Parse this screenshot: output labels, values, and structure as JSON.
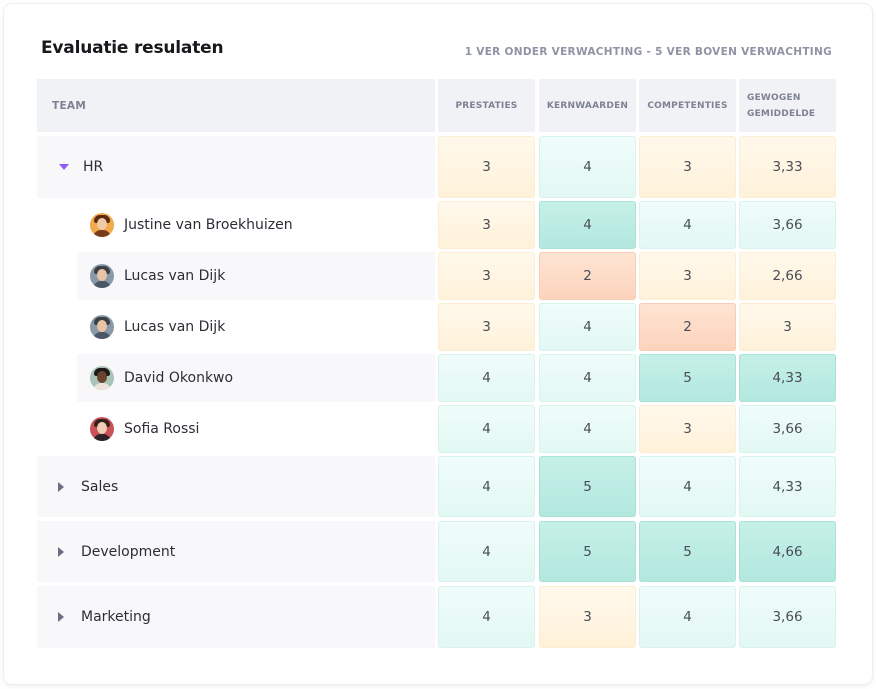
{
  "header": {
    "title": "Evaluatie resulaten",
    "legend": "1 VER ONDER VERWACHTING - 5 VER BOVEN VERWACHTING"
  },
  "columns": {
    "team": "TEAM",
    "prestaties": "PRESTATIES",
    "kernwaarden": "KERNWAARDEN",
    "competenties": "COMPETENTIES",
    "gewogen_line1": "GEWOGEN",
    "gewogen_line2": "GEMIDDELDE"
  },
  "rows": [
    {
      "type": "team",
      "name": "HR",
      "expanded": true,
      "values": [
        "3",
        "4",
        "3",
        "3,33"
      ]
    },
    {
      "type": "person",
      "name": "Justine van Broekhuizen",
      "avatar": "avatar-woman-orange",
      "values": [
        "3",
        "4",
        "4",
        "3,66"
      ]
    },
    {
      "type": "person",
      "name": "Lucas van Dijk",
      "avatar": "avatar-man-grey",
      "values": [
        "3",
        "2",
        "3",
        "2,66"
      ]
    },
    {
      "type": "person",
      "name": "Lucas van Dijk",
      "avatar": "avatar-man-grey",
      "values": [
        "3",
        "4",
        "2",
        "3"
      ]
    },
    {
      "type": "person",
      "name": "David Okonkwo",
      "avatar": "avatar-man-dark",
      "values": [
        "4",
        "4",
        "5",
        "4,33"
      ]
    },
    {
      "type": "person",
      "name": "Sofia Rossi",
      "avatar": "avatar-woman-red",
      "values": [
        "4",
        "4",
        "3",
        "3,66"
      ]
    },
    {
      "type": "team",
      "name": "Sales",
      "expanded": false,
      "values": [
        "4",
        "5",
        "4",
        "4,33"
      ]
    },
    {
      "type": "team",
      "name": "Development",
      "expanded": false,
      "values": [
        "4",
        "5",
        "5",
        "4,66"
      ]
    },
    {
      "type": "team",
      "name": "Marketing",
      "expanded": false,
      "values": [
        "4",
        "3",
        "4",
        "3,66"
      ]
    }
  ],
  "colors": {
    "expanded_caret": "#8b5cf6",
    "collapsed_caret": "#6b6f82",
    "score_yellow": "#fff3dc",
    "score_light_teal": "#e6f9f4",
    "score_teal": "#b8ebe1",
    "score_orange": "#fdd8c2"
  }
}
